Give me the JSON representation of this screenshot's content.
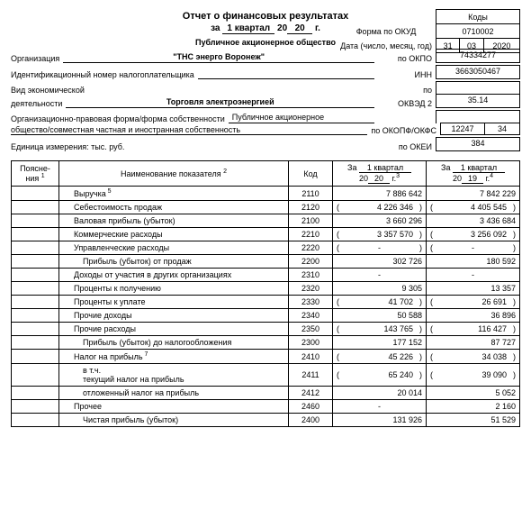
{
  "title": "Отчет о финансовых результатах",
  "period": {
    "label_za": "за",
    "quarter": "1 квартал",
    "year_prefix": "20",
    "year_suffix": "20",
    "g": "г."
  },
  "codes_header": "Коды",
  "form_okud": {
    "label": "Форма по ОКУД",
    "value": "0710002"
  },
  "date": {
    "label": "Дата (число, месяц, год)",
    "d": "31",
    "m": "03",
    "y": "2020"
  },
  "org": {
    "above": "Публичное акционерное общество",
    "name": "\"ТНС энерго Воронеж\"",
    "label": "Организация",
    "okpo_label": "по ОКПО",
    "okpo": "74334277"
  },
  "inn": {
    "label": "Идентификационный номер налогоплательщика",
    "code_label": "ИНН",
    "value": "3663050467"
  },
  "activity": {
    "label1": "Вид экономической",
    "label2": "деятельности",
    "value": "Торговля электроэнергией",
    "by": "по",
    "okved_label": "ОКВЭД 2",
    "okved": "35.14"
  },
  "legal": {
    "label1": "Организационно-правовая форма/форма собственности",
    "value1": "Публичное акционерное",
    "label2": "общество/совместная частная и иностранная собственность",
    "code_label": "по ОКОПФ/ОКФС",
    "c1": "12247",
    "c2": "34"
  },
  "unit": {
    "label": "Единица измерения: тыс. руб.",
    "code_label": "по ОКЕИ",
    "value": "384"
  },
  "thead": {
    "notes": "Поясне-\nния",
    "name": "Наименование показателя",
    "code": "Код",
    "p_cur_1": "За",
    "p_cur_2": "1 квартал",
    "p_cur_3": "20",
    "p_cur_4": "20",
    "p_cur_5": "г.",
    "p_prev_1": "За",
    "p_prev_2": "1 квартал",
    "p_prev_3": "20",
    "p_prev_4": "19",
    "p_prev_5": "г."
  },
  "rows": [
    {
      "name": "Выручка",
      "sup": "5",
      "code": "2110",
      "cur": "7 886 642",
      "prev": "7 842 229",
      "indent": 1
    },
    {
      "name": "Себестоимость продаж",
      "code": "2120",
      "cur": "4 226 346",
      "prev": "4 405 545",
      "indent": 1,
      "paren": true
    },
    {
      "name": "Валовая прибыль (убыток)",
      "code": "2100",
      "cur": "3 660 296",
      "prev": "3 436 684",
      "indent": 1
    },
    {
      "name": "Коммерческие расходы",
      "code": "2210",
      "cur": "3 357 570",
      "prev": "3 256 092",
      "indent": 1,
      "paren": true
    },
    {
      "name": "Управленческие расходы",
      "code": "2220",
      "cur": "-",
      "prev": "-",
      "indent": 1,
      "paren": true,
      "dash": true
    },
    {
      "name": "Прибыль (убыток) от продаж",
      "code": "2200",
      "cur": "302 726",
      "prev": "180 592",
      "indent": 2
    },
    {
      "name": "Доходы от участия в других организациях",
      "code": "2310",
      "cur": "-",
      "prev": "-",
      "indent": 1
    },
    {
      "name": "Проценты к получению",
      "code": "2320",
      "cur": "9 305",
      "prev": "13 357",
      "indent": 1
    },
    {
      "name": "Проценты к уплате",
      "code": "2330",
      "cur": "41 702",
      "prev": "26 691",
      "indent": 1,
      "paren": true
    },
    {
      "name": "Прочие доходы",
      "code": "2340",
      "cur": "50 588",
      "prev": "36 896",
      "indent": 1
    },
    {
      "name": "Прочие расходы",
      "code": "2350",
      "cur": "143 765",
      "prev": "116 427",
      "indent": 1,
      "paren": true
    },
    {
      "name": "Прибыль (убыток) до налогообложения",
      "code": "2300",
      "cur": "177 152",
      "prev": "87 727",
      "indent": 2
    },
    {
      "name": "Налог на прибыль",
      "sup": "7",
      "code": "2410",
      "cur": "45 226",
      "prev": "34 038",
      "indent": 1,
      "paren": true
    },
    {
      "name": "в т.ч.\nтекущий налог на прибыль",
      "code": "2411",
      "cur": "65 240",
      "prev": "39 090",
      "indent": 2,
      "paren": true,
      "multiline": true
    },
    {
      "name": "отложенный налог на прибыль",
      "code": "2412",
      "cur": "20 014",
      "prev": "5 052",
      "indent": 2
    },
    {
      "name": "Прочее",
      "code": "2460",
      "cur": "-",
      "prev": "2 160",
      "indent": 1
    },
    {
      "name": "Чистая прибыль (убыток)",
      "code": "2400",
      "cur": "131 926",
      "prev": "51 529",
      "indent": 2
    }
  ]
}
